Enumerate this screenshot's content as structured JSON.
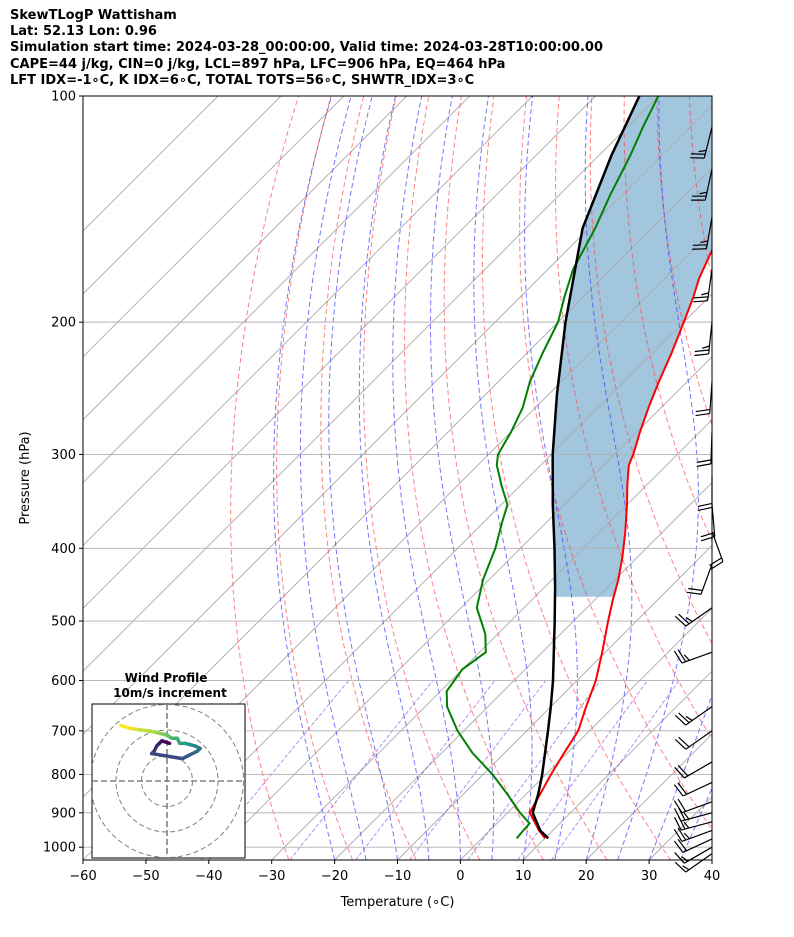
{
  "header": {
    "line1": "SkewTLogP Wattisham",
    "line2": "Lat: 52.13   Lon: 0.96",
    "line3": "Simulation start time: 2024-03-28_00:00:00, Valid time: 2024-03-28T10:00:00.00",
    "line4": "CAPE=44 j/kg, CIN=0 j/kg, LCL=897 hPa, LFC=906 hPa, EQ=464 hPa",
    "line5": "LFT IDX=-1∘C, K IDX=6∘C, TOTAL TOTS=56∘C, SHWTR_IDX=3∘C"
  },
  "colors": {
    "temperature": "#ff0000",
    "dewpoint": "#008000",
    "parcel": "#000000",
    "cape_fill": "#a3c6df",
    "dry_adiabats": "#ff4040",
    "moist_adiabats": "#3c3cff",
    "isotherms": "#a9a9a9",
    "mixing_ratio": "#8a2be2",
    "grid": "#b0b0b0",
    "barbs": "#000000"
  },
  "chart_data": [
    {
      "type": "skew-t log-p",
      "xlabel": "Temperature (∘C)",
      "ylabel": "Pressure (hPa)",
      "x_ticks": [
        -60,
        -50,
        -40,
        -30,
        -20,
        -10,
        0,
        10,
        20,
        30,
        40
      ],
      "y_ticks": [
        100,
        200,
        300,
        400,
        500,
        600,
        700,
        800,
        900,
        1000
      ],
      "x_range": [
        -60,
        40
      ],
      "y_range": [
        1040,
        100
      ],
      "y_scale": "log",
      "grid": true,
      "series": [
        {
          "id": "temperature",
          "p": [
            973,
            950,
            925,
            900,
            850,
            800,
            750,
            700,
            650,
            600,
            550,
            500,
            470,
            440,
            410,
            380,
            350,
            330,
            310,
            300,
            280,
            260,
            240,
            220,
            200,
            185,
            175,
            160,
            150,
            140,
            130,
            120,
            110,
            100
          ],
          "t": [
            10.0,
            7.8,
            5.7,
            3.5,
            2.2,
            0.8,
            -0.5,
            -1.8,
            -4.4,
            -7.0,
            -10.5,
            -14.5,
            -17.0,
            -19.5,
            -22.5,
            -26.0,
            -30.0,
            -33.0,
            -36.0,
            -37.0,
            -39.5,
            -42.0,
            -44.5,
            -47.0,
            -50.0,
            -52.5,
            -54.5,
            -57.0,
            -59.0,
            -61.0,
            -63.0,
            -66.0,
            -70.0,
            -74.0
          ]
        },
        {
          "id": "dewpoint",
          "p": [
            973,
            950,
            930,
            900,
            850,
            800,
            750,
            700,
            650,
            620,
            580,
            550,
            520,
            480,
            440,
            400,
            370,
            350,
            330,
            310,
            300,
            280,
            260,
            240,
            220,
            200,
            185,
            170,
            150,
            135,
            120,
            110,
            100
          ],
          "t": [
            5.5,
            5.3,
            5.2,
            2.0,
            -3.0,
            -8.5,
            -15.0,
            -21.0,
            -26.5,
            -29.0,
            -30.0,
            -29.0,
            -32.0,
            -37.5,
            -41.0,
            -44.0,
            -47.0,
            -49.0,
            -53.0,
            -57.0,
            -58.5,
            -60.0,
            -62.0,
            -65.0,
            -67.5,
            -70.0,
            -73.0,
            -76.0,
            -79.0,
            -82.0,
            -85.0,
            -87.5,
            -90.0
          ]
        },
        {
          "id": "parcel",
          "p": [
            973,
            950,
            900,
            850,
            800,
            750,
            700,
            650,
            600,
            550,
            500,
            450,
            400,
            350,
            300,
            250,
            200,
            150,
            120,
            100
          ],
          "t": [
            10.5,
            8.0,
            4.0,
            1.9,
            -0.6,
            -3.5,
            -6.6,
            -10.0,
            -13.8,
            -18.2,
            -23.0,
            -28.4,
            -34.6,
            -41.8,
            -49.8,
            -58.6,
            -68.8,
            -81.0,
            -88.0,
            -93.0
          ]
        }
      ],
      "cape_region": {
        "from_p": 464,
        "to_p": 100
      },
      "wind_barbs": [
        {
          "p": 1020,
          "speed": 15,
          "dir": 235
        },
        {
          "p": 1000,
          "speed": 15,
          "dir": 240
        },
        {
          "p": 975,
          "speed": 20,
          "dir": 245
        },
        {
          "p": 950,
          "speed": 25,
          "dir": 250
        },
        {
          "p": 925,
          "speed": 25,
          "dir": 255
        },
        {
          "p": 900,
          "speed": 25,
          "dir": 255
        },
        {
          "p": 870,
          "speed": 20,
          "dir": 250
        },
        {
          "p": 820,
          "speed": 20,
          "dir": 245
        },
        {
          "p": 770,
          "speed": 20,
          "dir": 240
        },
        {
          "p": 700,
          "speed": 20,
          "dir": 235
        },
        {
          "p": 650,
          "speed": 25,
          "dir": 235
        },
        {
          "p": 550,
          "speed": 25,
          "dir": 250
        },
        {
          "p": 480,
          "speed": 25,
          "dir": 235
        },
        {
          "p": 420,
          "speed": 20,
          "dir": 200
        },
        {
          "p": 380,
          "speed": 20,
          "dir": 160
        },
        {
          "p": 350,
          "speed": 20,
          "dir": 175
        },
        {
          "p": 320,
          "speed": 20,
          "dir": 180
        },
        {
          "p": 280,
          "speed": 20,
          "dir": 182
        },
        {
          "p": 240,
          "speed": 20,
          "dir": 184
        },
        {
          "p": 200,
          "speed": 25,
          "dir": 186
        },
        {
          "p": 170,
          "speed": 25,
          "dir": 188
        },
        {
          "p": 145,
          "speed": 25,
          "dir": 190
        },
        {
          "p": 125,
          "speed": 25,
          "dir": 192
        },
        {
          "p": 110,
          "speed": 25,
          "dir": 194
        }
      ]
    },
    {
      "type": "hodograph",
      "title": "Wind Profile",
      "subtitle": "10m/s increment",
      "ring_step": 10,
      "rings": [
        10,
        20,
        30
      ],
      "u": [
        6,
        8,
        10,
        12,
        13,
        11,
        9,
        7,
        5,
        4,
        2,
        1,
        0.5,
        -1,
        -3,
        -5,
        -8,
        -12,
        -15,
        -18
      ],
      "v": [
        -3,
        -2,
        -1,
        0,
        1,
        2,
        2.5,
        3,
        3,
        5,
        5,
        5.5,
        6,
        6.5,
        7,
        7.5,
        8,
        8.5,
        9,
        10
      ],
      "start_hodo": [
        1,
        -2,
        -3,
        -4,
        -5,
        -6
      ],
      "start_hodo_v": [
        3,
        4,
        3,
        2,
        0,
        -1
      ],
      "colormap": "viridis"
    }
  ]
}
